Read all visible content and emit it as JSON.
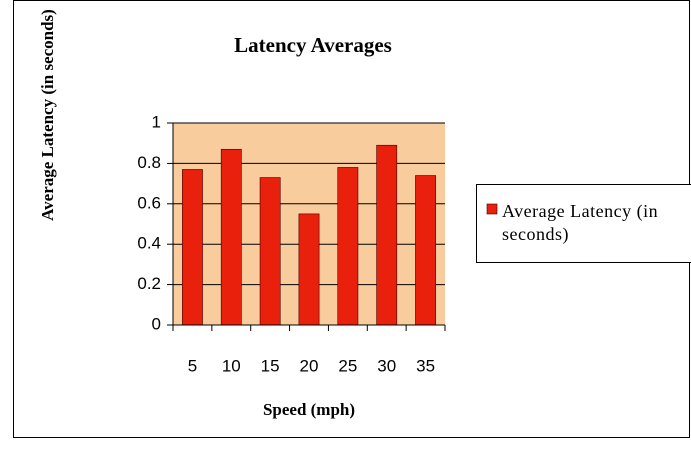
{
  "chart_data": {
    "type": "bar",
    "title": "Latency Averages",
    "x_label": "Speed (mph)",
    "y_label": "Average Latency (in seconds)",
    "categories": [
      "5",
      "10",
      "15",
      "20",
      "25",
      "30",
      "35"
    ],
    "series": [
      {
        "name": "Average Latency (in seconds)",
        "color": "#e8200c",
        "values": [
          0.77,
          0.87,
          0.73,
          0.55,
          0.78,
          0.89,
          0.74
        ]
      }
    ],
    "ylim": [
      0,
      1
    ],
    "yticks": [
      0,
      0.2,
      0.4,
      0.6,
      0.8,
      1
    ],
    "grid": true,
    "legend": "right"
  }
}
